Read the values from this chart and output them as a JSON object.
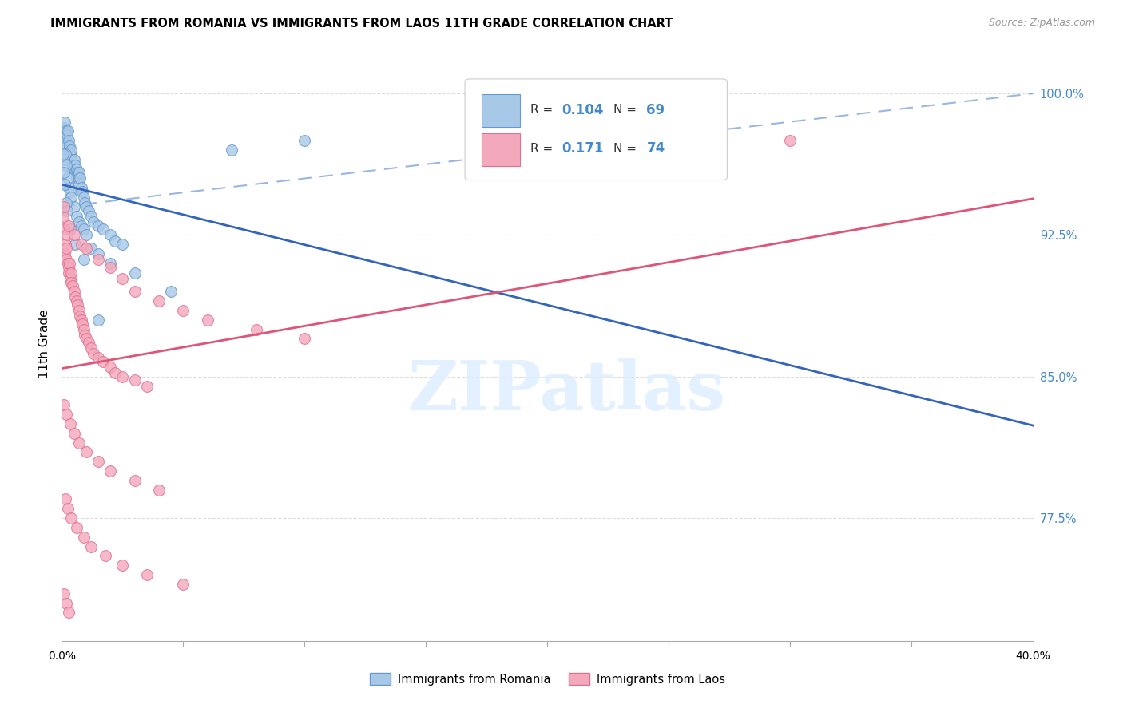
{
  "title": "IMMIGRANTS FROM ROMANIA VS IMMIGRANTS FROM LAOS 11TH GRADE CORRELATION CHART",
  "source": "Source: ZipAtlas.com",
  "ylabel": "11th Grade",
  "xlim": [
    0.0,
    40.0
  ],
  "ylim": [
    71.0,
    102.5
  ],
  "yticks": [
    77.5,
    85.0,
    92.5,
    100.0
  ],
  "ytick_labels": [
    "77.5%",
    "85.0%",
    "92.5%",
    "100.0%"
  ],
  "xticks": [
    0.0,
    5.0,
    10.0,
    15.0,
    20.0,
    25.0,
    30.0,
    35.0,
    40.0
  ],
  "xtick_labels": [
    "0.0%",
    "",
    "",
    "",
    "",
    "",
    "",
    "",
    "40.0%"
  ],
  "legend_R1": "0.104",
  "legend_N1": "69",
  "legend_R2": "0.171",
  "legend_N2": "74",
  "romania_color": "#a8c8e8",
  "laos_color": "#f4a8bc",
  "romania_edge": "#6699cc",
  "laos_edge": "#e07090",
  "trend_romania_color": "#3366bb",
  "trend_laos_color": "#dd5577",
  "trend_dashed_color": "#88aadd",
  "background_color": "#ffffff",
  "watermark_text": "ZIPatlas",
  "romania_data_x": [
    0.05,
    0.08,
    0.1,
    0.12,
    0.15,
    0.18,
    0.2,
    0.22,
    0.25,
    0.28,
    0.3,
    0.32,
    0.35,
    0.38,
    0.4,
    0.45,
    0.5,
    0.52,
    0.55,
    0.58,
    0.6,
    0.62,
    0.65,
    0.68,
    0.7,
    0.72,
    0.75,
    0.8,
    0.85,
    0.9,
    0.95,
    1.0,
    1.1,
    1.2,
    1.3,
    1.5,
    1.7,
    2.0,
    2.2,
    2.5,
    0.1,
    0.15,
    0.2,
    0.25,
    0.3,
    0.35,
    0.4,
    0.5,
    0.6,
    0.7,
    0.8,
    0.9,
    1.0,
    1.2,
    1.5,
    2.0,
    3.0,
    4.5,
    7.0,
    10.0,
    0.05,
    0.08,
    0.12,
    0.18,
    0.22,
    0.35,
    0.55,
    0.9,
    1.5
  ],
  "romania_data_y": [
    97.8,
    98.2,
    98.0,
    98.5,
    97.5,
    98.0,
    97.2,
    97.8,
    98.0,
    97.5,
    97.0,
    97.2,
    96.8,
    97.0,
    96.5,
    96.2,
    96.0,
    96.5,
    96.2,
    95.8,
    95.5,
    96.0,
    95.8,
    95.5,
    95.2,
    95.8,
    95.5,
    95.0,
    94.8,
    94.5,
    94.2,
    94.0,
    93.8,
    93.5,
    93.2,
    93.0,
    92.8,
    92.5,
    92.2,
    92.0,
    96.5,
    96.8,
    96.2,
    95.5,
    95.0,
    94.8,
    94.5,
    94.0,
    93.5,
    93.2,
    93.0,
    92.8,
    92.5,
    91.8,
    91.5,
    91.0,
    90.5,
    89.5,
    97.0,
    97.5,
    96.8,
    95.8,
    95.2,
    94.2,
    93.8,
    92.8,
    92.0,
    91.2,
    88.0
  ],
  "laos_data_x": [
    0.05,
    0.08,
    0.1,
    0.12,
    0.15,
    0.18,
    0.2,
    0.22,
    0.25,
    0.28,
    0.3,
    0.32,
    0.35,
    0.38,
    0.4,
    0.45,
    0.5,
    0.55,
    0.6,
    0.65,
    0.7,
    0.75,
    0.8,
    0.85,
    0.9,
    0.95,
    1.0,
    1.1,
    1.2,
    1.3,
    1.5,
    1.7,
    2.0,
    2.2,
    2.5,
    3.0,
    3.5,
    0.3,
    0.5,
    0.8,
    1.0,
    1.5,
    2.0,
    2.5,
    3.0,
    4.0,
    5.0,
    6.0,
    8.0,
    10.0,
    0.1,
    0.2,
    0.35,
    0.5,
    0.7,
    1.0,
    1.5,
    2.0,
    3.0,
    4.0,
    0.15,
    0.25,
    0.4,
    0.6,
    0.9,
    1.2,
    1.8,
    2.5,
    3.5,
    5.0,
    0.08,
    0.18,
    0.3,
    30.0
  ],
  "laos_data_y": [
    93.5,
    92.8,
    94.0,
    91.5,
    92.0,
    91.8,
    91.2,
    92.5,
    91.0,
    90.8,
    90.5,
    91.0,
    90.2,
    90.5,
    90.0,
    89.8,
    89.5,
    89.2,
    89.0,
    88.8,
    88.5,
    88.2,
    88.0,
    87.8,
    87.5,
    87.2,
    87.0,
    86.8,
    86.5,
    86.2,
    86.0,
    85.8,
    85.5,
    85.2,
    85.0,
    84.8,
    84.5,
    93.0,
    92.5,
    92.0,
    91.8,
    91.2,
    90.8,
    90.2,
    89.5,
    89.0,
    88.5,
    88.0,
    87.5,
    87.0,
    83.5,
    83.0,
    82.5,
    82.0,
    81.5,
    81.0,
    80.5,
    80.0,
    79.5,
    79.0,
    78.5,
    78.0,
    77.5,
    77.0,
    76.5,
    76.0,
    75.5,
    75.0,
    74.5,
    74.0,
    73.5,
    73.0,
    72.5,
    97.5
  ]
}
